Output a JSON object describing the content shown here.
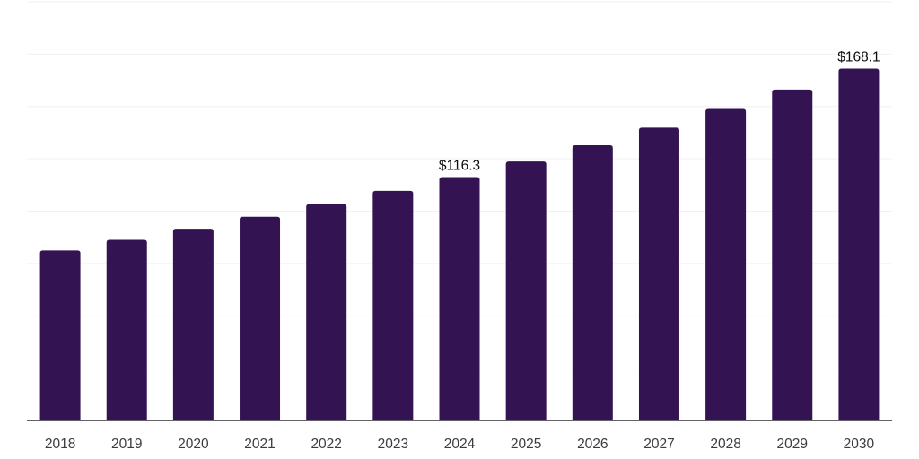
{
  "chart_data": {
    "type": "bar",
    "title": "",
    "xlabel": "",
    "ylabel": "",
    "categories": [
      "2018",
      "2019",
      "2020",
      "2021",
      "2022",
      "2023",
      "2024",
      "2025",
      "2026",
      "2027",
      "2028",
      "2029",
      "2030"
    ],
    "values": [
      81.2,
      86.3,
      91.6,
      97.3,
      103.3,
      109.7,
      116.3,
      123.7,
      131.5,
      139.9,
      148.8,
      158.1,
      168.1
    ],
    "data_labels": [
      {
        "category": "2024",
        "text": "$116.3"
      },
      {
        "category": "2030",
        "text": "$168.1"
      }
    ],
    "ylim": [
      0,
      200
    ],
    "gridline_step": 25,
    "grid": "horizontal-only",
    "y_tick_labels_visible": false,
    "legend": "none",
    "colors": {
      "bar": "#341352",
      "gridline": "#f2f0f3",
      "axis": "#2d2d35",
      "tick_text": "#3c3c3c",
      "label_text": "#0d0d0d",
      "background": "#ffffff"
    }
  }
}
